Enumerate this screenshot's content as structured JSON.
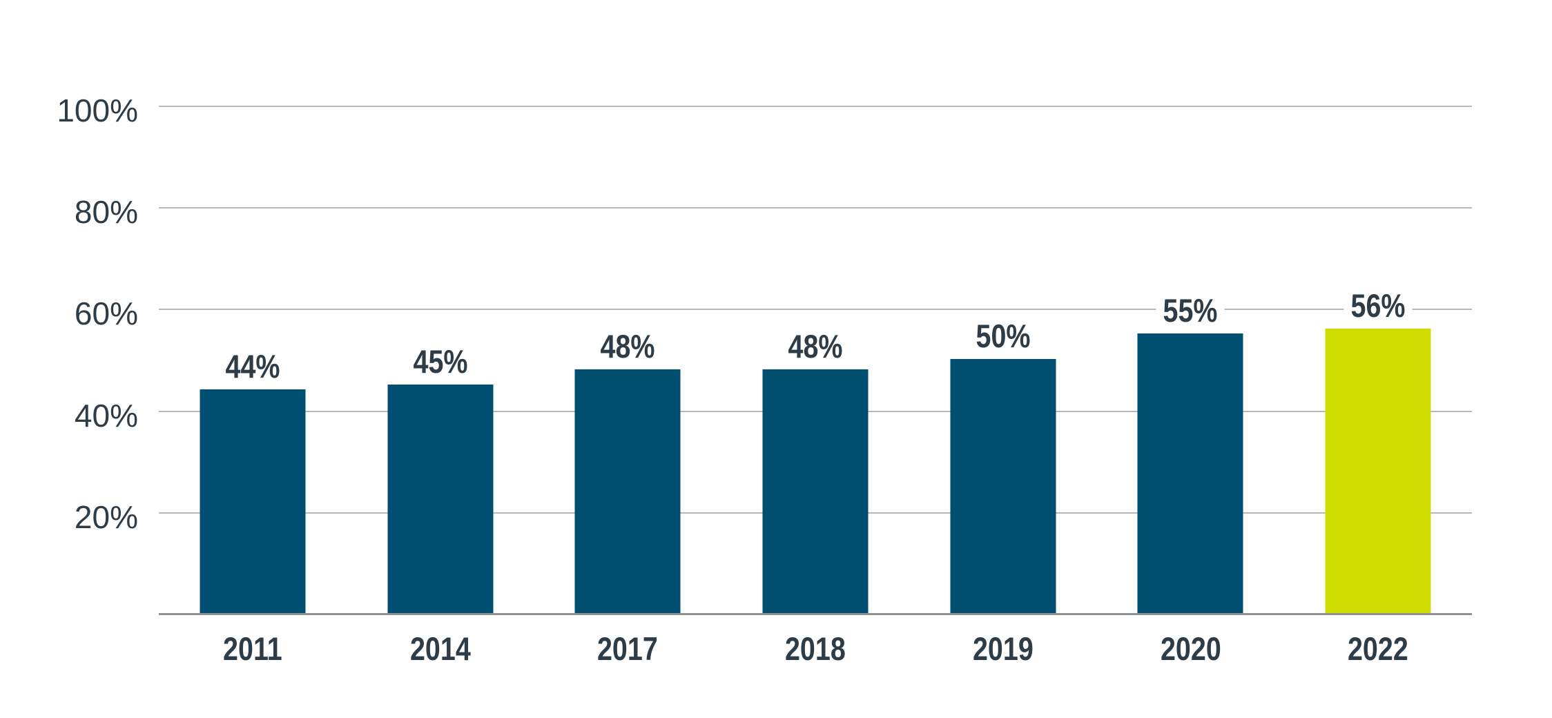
{
  "chart_data": {
    "type": "bar",
    "title": "",
    "xlabel": "",
    "ylabel": "",
    "categories": [
      "2011",
      "2014",
      "2017",
      "2018",
      "2019",
      "2020",
      "2022"
    ],
    "values": [
      44,
      45,
      48,
      48,
      50,
      55,
      56
    ],
    "value_labels": [
      "44%",
      "45%",
      "48%",
      "48%",
      "50%",
      "55%",
      "56%"
    ],
    "ylim": [
      0,
      100
    ],
    "y_ticks": [
      {
        "value": 20,
        "label": "20%"
      },
      {
        "value": 40,
        "label": "40%"
      },
      {
        "value": 60,
        "label": "60%"
      },
      {
        "value": 80,
        "label": "80%"
      },
      {
        "value": 100,
        "label": "100%"
      }
    ],
    "grid": "horizontal",
    "legend": "none",
    "highlighted_category": "2022",
    "colors": {
      "bar": "#004F71",
      "bar_highlight": "#CEDC00",
      "text": "#2E3C48",
      "gridline": "#B5B8BA",
      "axis_line": "#8E9194",
      "background": "#FFFFFF"
    }
  }
}
